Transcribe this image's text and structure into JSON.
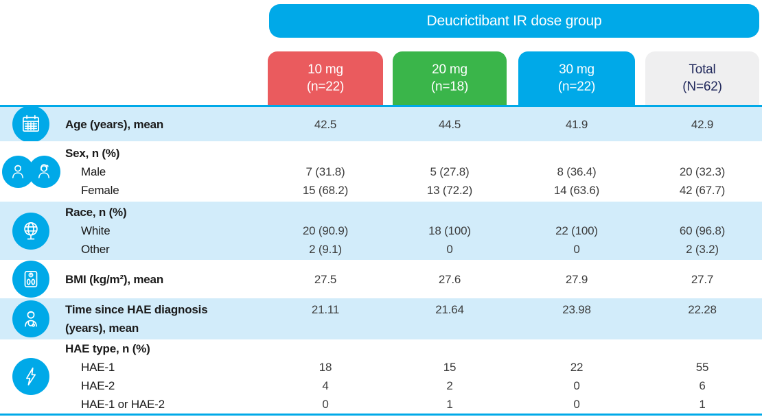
{
  "header": {
    "title": "Deucrictibant IR dose group",
    "columns": [
      {
        "key": "10mg",
        "dose": "10 mg",
        "n": "(n=22)",
        "color": "#EA5B5E",
        "text_color": "#FFFFFF"
      },
      {
        "key": "20mg",
        "dose": "20 mg",
        "n": "(n=18)",
        "color": "#3AB54A",
        "text_color": "#FFFFFF"
      },
      {
        "key": "30mg",
        "dose": "30 mg",
        "n": "(n=22)",
        "color": "#00A9E8",
        "text_color": "#FFFFFF"
      },
      {
        "key": "total",
        "dose": "Total",
        "n": "(N=62)",
        "color": "#EFEFF0",
        "text_color": "#21295C"
      }
    ]
  },
  "colors": {
    "accent_blue": "#00A9E8",
    "row_shade": "#D2ECFA",
    "red": "#EA5B5E",
    "green": "#3AB54A",
    "total_gray": "#EFEFF0",
    "navy_text": "#21295C",
    "label_text": "#1A1A1A",
    "value_text": "#3C3C3C"
  },
  "rows": [
    {
      "key": "age",
      "icon": "calendar-icon",
      "shaded": true,
      "lines": [
        {
          "label": "Age (years), mean",
          "bold": true,
          "indent": false,
          "values": [
            "42.5",
            "44.5",
            "41.9",
            "42.9"
          ]
        }
      ]
    },
    {
      "key": "sex",
      "icon": "male-female-icon",
      "shaded": false,
      "lines": [
        {
          "label": "Sex, n (%)",
          "bold": true,
          "indent": false,
          "values": [
            "",
            "",
            "",
            ""
          ]
        },
        {
          "label": "Male",
          "bold": false,
          "indent": true,
          "values": [
            "7 (31.8)",
            "5 (27.8)",
            "8 (36.4)",
            "20 (32.3)"
          ]
        },
        {
          "label": "Female",
          "bold": false,
          "indent": true,
          "values": [
            "15 (68.2)",
            "13 (72.2)",
            "14 (63.6)",
            "42 (67.7)"
          ]
        }
      ]
    },
    {
      "key": "race",
      "icon": "globe-icon",
      "shaded": true,
      "lines": [
        {
          "label": "Race, n (%)",
          "bold": true,
          "indent": false,
          "values": [
            "",
            "",
            "",
            ""
          ]
        },
        {
          "label": "White",
          "bold": false,
          "indent": true,
          "values": [
            "20 (90.9)",
            "18 (100)",
            "22 (100)",
            "60 (96.8)"
          ]
        },
        {
          "label": "Other",
          "bold": false,
          "indent": true,
          "values": [
            "2 (9.1)",
            "0",
            "0",
            "2 (3.2)"
          ]
        }
      ]
    },
    {
      "key": "bmi",
      "icon": "scale-icon",
      "shaded": false,
      "lines": [
        {
          "label": "BMI (kg/m²), mean",
          "bold": true,
          "indent": false,
          "values": [
            "27.5",
            "27.6",
            "27.9",
            "27.7"
          ]
        }
      ]
    },
    {
      "key": "time",
      "icon": "doctor-icon",
      "shaded": true,
      "lines": [
        {
          "label": "Time since HAE diagnosis",
          "bold": true,
          "indent": false,
          "values": [
            "21.11",
            "21.64",
            "23.98",
            "22.28"
          ]
        },
        {
          "label": "(years), mean",
          "bold": true,
          "indent": false,
          "values": [
            "",
            "",
            "",
            ""
          ]
        }
      ]
    },
    {
      "key": "hae",
      "icon": "lightning-icon",
      "shaded": false,
      "lines": [
        {
          "label": "HAE type, n (%)",
          "bold": true,
          "indent": false,
          "values": [
            "",
            "",
            "",
            ""
          ]
        },
        {
          "label": "HAE-1",
          "bold": false,
          "indent": true,
          "values": [
            "18",
            "15",
            "22",
            "55"
          ]
        },
        {
          "label": "HAE-2",
          "bold": false,
          "indent": true,
          "values": [
            "4",
            "2",
            "0",
            "6"
          ]
        },
        {
          "label": "HAE-1 or HAE-2",
          "bold": false,
          "indent": true,
          "values": [
            "0",
            "1",
            "0",
            "1"
          ]
        }
      ]
    }
  ]
}
